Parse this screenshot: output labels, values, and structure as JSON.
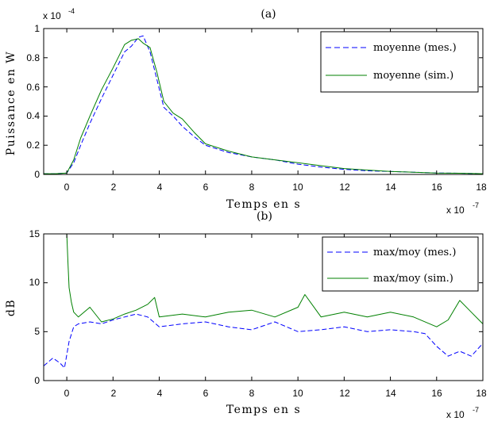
{
  "chart_data": [
    {
      "type": "line",
      "title": "(a)",
      "xlabel": "Temps en s",
      "ylabel": "Puissance en W",
      "x_multiplier": "x 10",
      "x_exponent": "-7",
      "y_multiplier": "x 10",
      "y_exponent": "-4",
      "xlim": [
        -1,
        18
      ],
      "ylim": [
        0,
        1
      ],
      "xticks": [
        0,
        2,
        4,
        6,
        8,
        10,
        12,
        14,
        16,
        18
      ],
      "yticks": [
        0,
        0.2,
        0.4,
        0.6,
        0.8,
        1
      ],
      "x_tick_labels": [
        "0",
        "2",
        "4",
        "6",
        "8",
        "10",
        "12",
        "14",
        "16",
        "18"
      ],
      "y_tick_labels": [
        "0",
        "0.2",
        "0.4",
        "0.6",
        "0.8",
        "1"
      ],
      "grid": false,
      "legend_position": "top-right",
      "series": [
        {
          "name": "moyenne (mes.)",
          "color": "#0000ff",
          "style": "dashed",
          "x": [
            -1,
            -0.5,
            0,
            0.3,
            0.6,
            1.0,
            1.5,
            2.0,
            2.5,
            2.8,
            3.1,
            3.3,
            3.6,
            3.9,
            4.2,
            4.6,
            5.0,
            5.5,
            6.0,
            7.0,
            8.0,
            9.0,
            10.0,
            11.0,
            12.0,
            13.0,
            14.0,
            15.0,
            16.0,
            17.0,
            18.0
          ],
          "y": [
            0.005,
            0.005,
            0.01,
            0.08,
            0.2,
            0.35,
            0.52,
            0.68,
            0.84,
            0.88,
            0.94,
            0.95,
            0.84,
            0.65,
            0.46,
            0.4,
            0.33,
            0.26,
            0.2,
            0.15,
            0.12,
            0.1,
            0.07,
            0.05,
            0.035,
            0.025,
            0.02,
            0.015,
            0.01,
            0.008,
            0.005
          ]
        },
        {
          "name": "moyenne (sim.)",
          "color": "#008000",
          "style": "solid",
          "x": [
            -1,
            -0.5,
            0,
            0.3,
            0.6,
            1.0,
            1.5,
            2.0,
            2.5,
            2.8,
            3.1,
            3.3,
            3.6,
            3.9,
            4.2,
            4.6,
            5.0,
            5.5,
            6.0,
            7.0,
            8.0,
            9.0,
            10.0,
            11.0,
            12.0,
            13.0,
            14.0,
            15.0,
            16.0,
            17.0,
            18.0
          ],
          "y": [
            0.005,
            0.005,
            0.01,
            0.1,
            0.25,
            0.4,
            0.58,
            0.73,
            0.89,
            0.92,
            0.93,
            0.9,
            0.87,
            0.7,
            0.5,
            0.42,
            0.38,
            0.29,
            0.21,
            0.16,
            0.12,
            0.1,
            0.08,
            0.06,
            0.04,
            0.03,
            0.02,
            0.015,
            0.01,
            0.008,
            0.005
          ]
        }
      ]
    },
    {
      "type": "line",
      "title": "(b)",
      "xlabel": "Temps en s",
      "ylabel": "dB",
      "x_multiplier": "x 10",
      "x_exponent": "-7",
      "xlim": [
        -1,
        18
      ],
      "ylim": [
        0,
        15
      ],
      "xticks": [
        0,
        2,
        4,
        6,
        8,
        10,
        12,
        14,
        16,
        18
      ],
      "yticks": [
        0,
        5,
        10,
        15
      ],
      "x_tick_labels": [
        "0",
        "2",
        "4",
        "6",
        "8",
        "10",
        "12",
        "14",
        "16",
        "18"
      ],
      "y_tick_labels": [
        "0",
        "5",
        "10",
        "15"
      ],
      "grid": false,
      "legend_position": "top-right",
      "series": [
        {
          "name": "max/moy (mes.)",
          "color": "#0000ff",
          "style": "dashed",
          "x": [
            -1,
            -0.6,
            -0.3,
            -0.1,
            0.1,
            0.3,
            0.5,
            1.0,
            1.5,
            2.0,
            2.5,
            3.0,
            3.5,
            4.0,
            5.0,
            6.0,
            7.0,
            8.0,
            9.0,
            10.0,
            11.0,
            12.0,
            13.0,
            14.0,
            15.0,
            15.5,
            16.0,
            16.5,
            17.0,
            17.5,
            18.0
          ],
          "y": [
            1.5,
            2.3,
            1.8,
            1.3,
            4.0,
            5.5,
            5.8,
            6.0,
            5.8,
            6.2,
            6.5,
            6.8,
            6.5,
            5.5,
            5.8,
            6.0,
            5.5,
            5.2,
            6.0,
            5.0,
            5.2,
            5.5,
            5.0,
            5.2,
            5.0,
            4.8,
            3.5,
            2.5,
            3.0,
            2.5,
            3.8
          ]
        },
        {
          "name": "max/moy (sim.)",
          "color": "#008000",
          "style": "solid",
          "x": [
            0.0,
            0.05,
            0.1,
            0.2,
            0.3,
            0.5,
            1.0,
            1.5,
            2.0,
            2.5,
            3.0,
            3.5,
            3.8,
            4.0,
            5.0,
            6.0,
            7.0,
            8.0,
            9.0,
            10.0,
            10.3,
            11.0,
            12.0,
            13.0,
            14.0,
            15.0,
            16.0,
            16.5,
            17.0,
            17.5,
            18.0
          ],
          "y": [
            15.0,
            12.0,
            9.5,
            8.0,
            7.0,
            6.5,
            7.5,
            6.0,
            6.3,
            6.8,
            7.2,
            7.8,
            8.5,
            6.5,
            6.8,
            6.5,
            7.0,
            7.2,
            6.5,
            7.5,
            8.8,
            6.5,
            7.0,
            6.5,
            7.0,
            6.5,
            5.5,
            6.2,
            8.2,
            7.0,
            5.8
          ]
        }
      ]
    }
  ]
}
